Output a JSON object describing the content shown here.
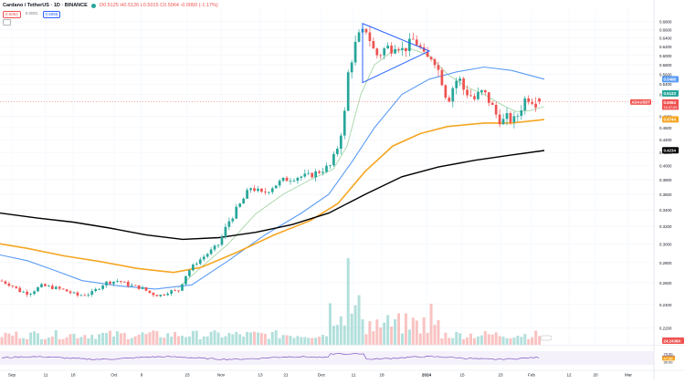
{
  "header": {
    "title": "Cardano / TetherUS · 1D · BINANCE",
    "ohlc": "O0.5125 H0.5126 L0.5015 C0.5064 -0.0060 (-1.17%)",
    "pill_sell": "0.5064",
    "pill_mid": "0.0001",
    "pill_buy": "0.5065"
  },
  "colors": {
    "up": "#26a69a",
    "down": "#ef5350",
    "ma_fast": "#a5d6a7",
    "ma_mid": "#5b9cf6",
    "ma_slow": "#f5a623",
    "ma_long": "#000000",
    "triangle": "#2962ff",
    "rsi": "#7e57c2"
  },
  "chart_data": {
    "type": "candlestick",
    "symbol": "ADAUSDT",
    "interval": "1D",
    "y_scale": "log",
    "ylim": [
      0.2069,
      0.7117
    ],
    "y_ticks": [
      "0.6800",
      "0.6600",
      "0.6400",
      "0.6200",
      "0.6000",
      "0.5800",
      "0.5600",
      "0.5400",
      "0.5200",
      "0.4800",
      "0.4600",
      "0.4400",
      "0.4200",
      "0.4000",
      "0.3800",
      "0.3600",
      "0.3400",
      "0.3200",
      "0.3000",
      "0.2800",
      "0.2600",
      "0.2400",
      "0.2200"
    ],
    "x_ticks": [
      "Sep",
      "11",
      "18",
      "Oct",
      "9",
      "23",
      "Nov",
      "13",
      "21",
      "Dec",
      "11",
      "18",
      "2024",
      "15",
      "23",
      "Feb",
      "12",
      "20",
      "Mar"
    ],
    "price_labels": [
      {
        "name": "ma_mid",
        "value": "0.5498"
      },
      {
        "name": "upper",
        "value": "0.5133"
      },
      {
        "name": "last",
        "value": "0.5064"
      },
      {
        "name": "last_sub",
        "value": "16:57:00"
      },
      {
        "name": "last_symbol",
        "value": "ADAUSDT"
      },
      {
        "name": "ma_slow",
        "value": "0.4744"
      },
      {
        "name": "ma_long",
        "value": "0.4234"
      }
    ],
    "candles_ohlc_sample": [
      [
        0.262,
        0.2645,
        0.256,
        0.2585
      ],
      [
        0.2585,
        0.262,
        0.254,
        0.256
      ],
      [
        0.256,
        0.26,
        0.253,
        0.2575
      ],
      [
        0.25,
        0.256,
        0.246,
        0.248
      ],
      [
        0.248,
        0.262,
        0.247,
        0.259
      ],
      [
        0.259,
        0.264,
        0.254,
        0.256
      ],
      [
        0.256,
        0.264,
        0.252,
        0.262
      ],
      [
        0.3,
        0.315,
        0.298,
        0.312
      ],
      [
        0.36,
        0.37,
        0.354,
        0.362
      ],
      [
        0.375,
        0.38,
        0.364,
        0.37
      ],
      [
        0.39,
        0.405,
        0.388,
        0.4
      ],
      [
        0.58,
        0.62,
        0.56,
        0.61
      ],
      [
        0.67,
        0.68,
        0.65,
        0.66
      ],
      [
        0.64,
        0.655,
        0.62,
        0.63
      ],
      [
        0.61,
        0.63,
        0.585,
        0.59
      ],
      [
        0.52,
        0.54,
        0.5,
        0.51
      ],
      [
        0.475,
        0.485,
        0.46,
        0.478
      ],
      [
        0.48,
        0.5,
        0.475,
        0.495
      ],
      [
        0.5125,
        0.5126,
        0.5015,
        0.5064
      ]
    ],
    "rsi_labels": [
      "70.00",
      "50.79",
      "47.88",
      "30.00"
    ],
    "volume_label": "24.2436K",
    "legend": "none",
    "grid": true
  }
}
